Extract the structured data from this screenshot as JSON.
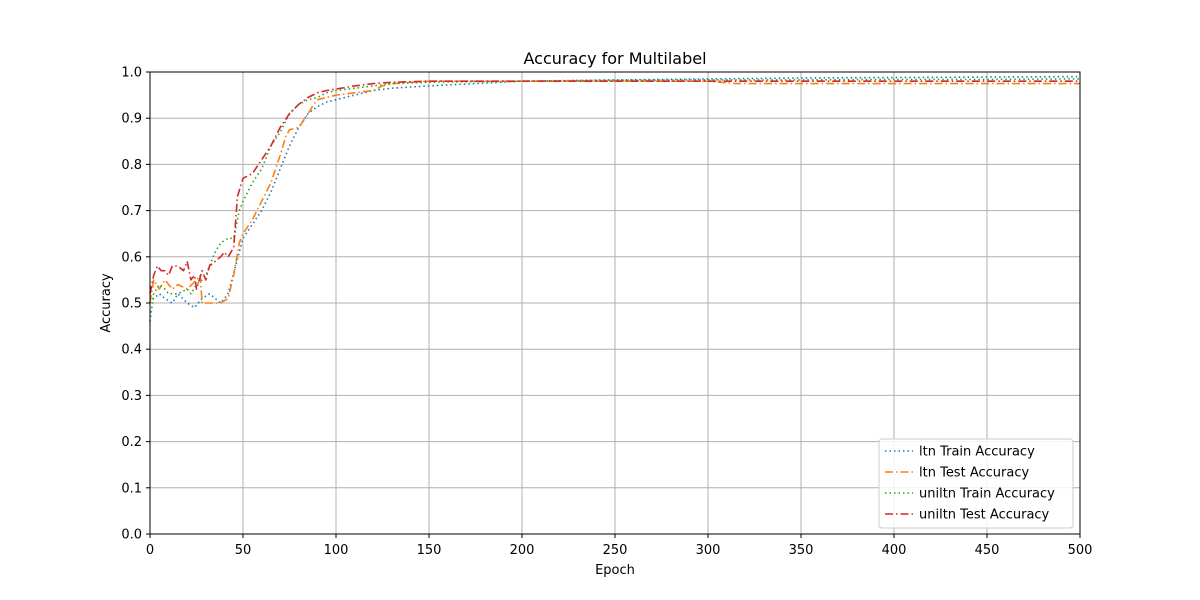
{
  "chart_data": {
    "type": "line",
    "title": "Accuracy for Multilabel",
    "xlabel": "Epoch",
    "ylabel": "Accuracy",
    "xlim": [
      0,
      500
    ],
    "ylim": [
      0.0,
      1.0
    ],
    "xticks": [
      "0",
      "50",
      "100",
      "150",
      "200",
      "250",
      "300",
      "350",
      "400",
      "450",
      "500"
    ],
    "yticks": [
      "0.0",
      "0.1",
      "0.2",
      "0.3",
      "0.4",
      "0.5",
      "0.6",
      "0.7",
      "0.8",
      "0.9",
      "1.0"
    ],
    "grid": true,
    "legend_position": "lower-right",
    "series": [
      {
        "name": "ltn Train Accuracy",
        "color": "#1f77b4",
        "dash": "dotted",
        "x": [
          0,
          2,
          5,
          8,
          12,
          15,
          20,
          24,
          28,
          32,
          35,
          38,
          42,
          46,
          50,
          55,
          60,
          65,
          70,
          75,
          80,
          85,
          90,
          95,
          100,
          110,
          120,
          130,
          150,
          200,
          250,
          300,
          350,
          400,
          450,
          500
        ],
        "y": [
          0.5,
          0.51,
          0.52,
          0.51,
          0.5,
          0.52,
          0.5,
          0.49,
          0.51,
          0.52,
          0.51,
          0.5,
          0.52,
          0.58,
          0.64,
          0.67,
          0.7,
          0.74,
          0.79,
          0.84,
          0.88,
          0.91,
          0.925,
          0.935,
          0.94,
          0.95,
          0.96,
          0.965,
          0.97,
          0.98,
          0.983,
          0.985,
          0.987,
          0.988,
          0.989,
          0.99
        ]
      },
      {
        "name": "ltn Test Accuracy",
        "color": "#ff7f0e",
        "dash": "dashdot",
        "x": [
          0,
          2,
          5,
          8,
          12,
          15,
          20,
          25,
          27,
          28,
          30,
          35,
          38,
          42,
          45,
          48,
          50,
          55,
          60,
          65,
          70,
          73,
          75,
          80,
          85,
          88,
          90,
          95,
          100,
          110,
          120,
          125,
          130,
          150,
          200,
          250,
          300,
          315,
          350,
          400,
          450,
          500
        ],
        "y": [
          0.5,
          0.55,
          0.53,
          0.55,
          0.53,
          0.54,
          0.53,
          0.55,
          0.56,
          0.5,
          0.5,
          0.5,
          0.5,
          0.51,
          0.56,
          0.63,
          0.65,
          0.68,
          0.72,
          0.76,
          0.82,
          0.86,
          0.875,
          0.88,
          0.91,
          0.93,
          0.94,
          0.945,
          0.95,
          0.955,
          0.96,
          0.97,
          0.975,
          0.98,
          0.98,
          0.98,
          0.98,
          0.975,
          0.975,
          0.975,
          0.975,
          0.975
        ]
      },
      {
        "name": "uniltn Train Accuracy",
        "color": "#2ca02c",
        "dash": "dotted",
        "x": [
          0,
          2,
          5,
          8,
          10,
          15,
          20,
          22,
          25,
          28,
          30,
          35,
          38,
          42,
          45,
          48,
          50,
          55,
          60,
          65,
          70,
          75,
          80,
          85,
          90,
          95,
          100,
          110,
          120,
          130,
          150,
          200,
          250,
          300,
          350,
          400,
          450,
          500
        ],
        "y": [
          0.46,
          0.52,
          0.54,
          0.53,
          0.52,
          0.52,
          0.53,
          0.52,
          0.54,
          0.55,
          0.56,
          0.61,
          0.63,
          0.64,
          0.64,
          0.7,
          0.72,
          0.76,
          0.79,
          0.84,
          0.87,
          0.91,
          0.93,
          0.94,
          0.945,
          0.955,
          0.96,
          0.965,
          0.97,
          0.975,
          0.978,
          0.98,
          0.982,
          0.983,
          0.983,
          0.984,
          0.984,
          0.985
        ]
      },
      {
        "name": "uniltn Test Accuracy",
        "color": "#d62728",
        "dash": "dashdot",
        "x": [
          0,
          2,
          4,
          6,
          8,
          10,
          12,
          15,
          18,
          20,
          22,
          24,
          25,
          28,
          30,
          32,
          35,
          38,
          40,
          42,
          45,
          47,
          50,
          55,
          60,
          65,
          70,
          75,
          80,
          85,
          90,
          95,
          100,
          110,
          120,
          130,
          150,
          200,
          250,
          300,
          350,
          400,
          450,
          500
        ],
        "y": [
          0.52,
          0.56,
          0.58,
          0.57,
          0.57,
          0.56,
          0.58,
          0.58,
          0.57,
          0.59,
          0.55,
          0.56,
          0.53,
          0.57,
          0.55,
          0.58,
          0.59,
          0.6,
          0.61,
          0.6,
          0.62,
          0.73,
          0.77,
          0.78,
          0.81,
          0.84,
          0.88,
          0.91,
          0.93,
          0.945,
          0.955,
          0.96,
          0.963,
          0.97,
          0.975,
          0.978,
          0.98,
          0.98,
          0.98,
          0.98,
          0.98,
          0.98,
          0.98,
          0.98
        ]
      }
    ]
  }
}
